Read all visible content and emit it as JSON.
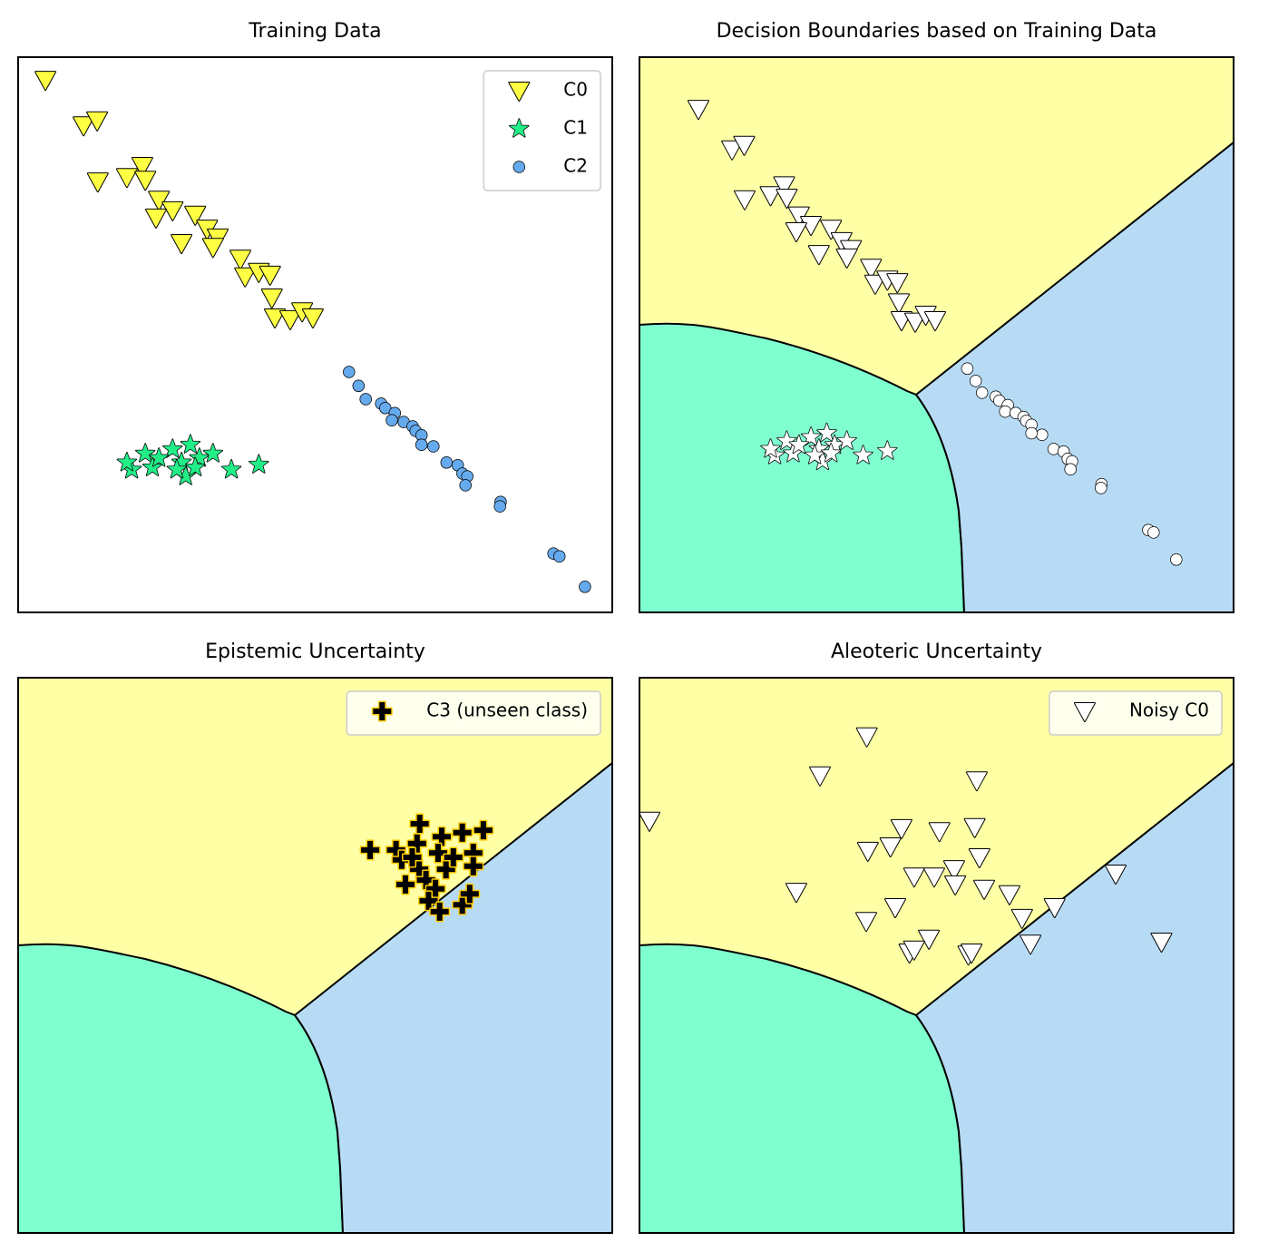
{
  "chart_data": [
    {
      "type": "scatter",
      "title": "Training Data",
      "xlim": [
        0,
        10
      ],
      "ylim": [
        0,
        10
      ],
      "legend": "upper right",
      "series": [
        {
          "name": "C0",
          "marker": "v",
          "color": "#ffff44",
          "edgecolor": "#000000",
          "x": [
            0.46,
            1.1,
            1.33,
            1.34,
            1.83,
            2.09,
            2.14,
            2.37,
            2.6,
            2.32,
            2.98,
            3.18,
            3.36,
            3.28,
            2.75,
            3.74,
            3.82,
            4.05,
            4.24,
            4.27,
            4.32,
            4.58,
            4.78,
            4.96
          ],
          "y": [
            9.59,
            8.77,
            8.86,
            7.76,
            7.84,
            8.04,
            7.79,
            7.43,
            7.24,
            7.11,
            7.16,
            6.91,
            6.75,
            6.58,
            6.65,
            6.37,
            6.05,
            6.13,
            6.08,
            5.67,
            5.31,
            5.28,
            5.42,
            5.31
          ]
        },
        {
          "name": "C1",
          "marker": "*",
          "color": "#22ee88",
          "edgecolor": "#000000",
          "x": [
            1.91,
            2.14,
            2.26,
            2.6,
            2.75,
            2.9,
            2.82,
            3.05,
            3.28,
            3.59,
            4.05,
            1.83,
            2.37,
            2.67,
            2.98
          ],
          "y": [
            2.57,
            2.86,
            2.61,
            2.94,
            2.7,
            3.02,
            2.45,
            2.78,
            2.86,
            2.57,
            2.66,
            2.7,
            2.78,
            2.57,
            2.61
          ]
        },
        {
          "name": "C2",
          "marker": "o",
          "color": "#66aaee",
          "edgecolor": "#000000",
          "x": [
            5.57,
            5.73,
            5.85,
            6.11,
            6.18,
            6.34,
            6.29,
            6.49,
            6.64,
            6.69,
            6.79,
            6.99,
            6.79,
            7.21,
            7.4,
            7.48,
            7.56,
            7.53,
            8.12,
            8.11,
            9.01,
            9.11,
            9.54
          ],
          "y": [
            4.33,
            4.08,
            3.84,
            3.76,
            3.68,
            3.59,
            3.46,
            3.43,
            3.35,
            3.27,
            3.19,
            2.99,
            3.02,
            2.7,
            2.65,
            2.5,
            2.45,
            2.29,
            1.99,
            1.91,
            1.06,
            1.01,
            0.46
          ]
        }
      ]
    },
    {
      "type": "scatter",
      "title": "Decision Boundaries based on Training Data",
      "xlim": [
        -0.66,
        10.63
      ],
      "ylim": [
        -0.61,
        10.64
      ],
      "series": [
        {
          "marker": "v",
          "color": "#ffffff",
          "edgecolor": "#000000",
          "x": [
            0.46,
            1.1,
            1.33,
            1.34,
            1.83,
            2.09,
            2.14,
            2.37,
            2.6,
            2.32,
            2.98,
            3.18,
            3.36,
            3.28,
            2.75,
            3.74,
            3.82,
            4.05,
            4.24,
            4.27,
            4.32,
            4.58,
            4.78,
            4.96
          ],
          "y": [
            9.59,
            8.77,
            8.86,
            7.76,
            7.84,
            8.04,
            7.79,
            7.43,
            7.24,
            7.11,
            7.16,
            6.91,
            6.75,
            6.58,
            6.65,
            6.37,
            6.05,
            6.13,
            6.08,
            5.67,
            5.31,
            5.28,
            5.42,
            5.31
          ]
        },
        {
          "marker": "*",
          "color": "#ffffff",
          "edgecolor": "#000000",
          "x": [
            1.91,
            2.14,
            2.26,
            2.6,
            2.75,
            2.9,
            2.82,
            3.05,
            3.28,
            3.59,
            4.05,
            1.83,
            2.37,
            2.67,
            2.98
          ],
          "y": [
            2.57,
            2.86,
            2.61,
            2.94,
            2.7,
            3.02,
            2.45,
            2.78,
            2.86,
            2.57,
            2.66,
            2.7,
            2.78,
            2.57,
            2.61
          ]
        },
        {
          "marker": "o",
          "color": "#ffffff",
          "edgecolor": "#000000",
          "x": [
            5.57,
            5.73,
            5.85,
            6.11,
            6.18,
            6.34,
            6.29,
            6.49,
            6.64,
            6.69,
            6.79,
            6.99,
            6.79,
            7.21,
            7.4,
            7.48,
            7.56,
            7.53,
            8.12,
            8.11,
            9.01,
            9.11,
            9.54
          ],
          "y": [
            4.33,
            4.08,
            3.84,
            3.76,
            3.68,
            3.59,
            3.46,
            3.43,
            3.35,
            3.27,
            3.19,
            2.99,
            3.02,
            2.7,
            2.65,
            2.5,
            2.45,
            2.29,
            1.99,
            1.91,
            1.06,
            1.01,
            0.46
          ]
        }
      ]
    },
    {
      "type": "scatter",
      "title": "Epistemic Uncertainty",
      "xlim": [
        -0.66,
        10.63
      ],
      "ylim": [
        -0.61,
        10.64
      ],
      "legend": "upper right",
      "series": [
        {
          "name": "C3 (unseen class)",
          "marker": "P",
          "color": "#000000",
          "edgecolor": "#ffcc00",
          "x": [
            6.03,
            6.52,
            6.97,
            7.39,
            7.78,
            8.18,
            6.92,
            6.63,
            6.96,
            7.32,
            7.47,
            7.99,
            7.99,
            6.7,
            7.09,
            7.27,
            7.14,
            7.35,
            7.78,
            7.92,
            7.61,
            6.83
          ],
          "y": [
            7.15,
            7.15,
            7.68,
            7.42,
            7.5,
            7.55,
            7.28,
            6.95,
            6.76,
            7.09,
            6.76,
            7.09,
            6.82,
            6.45,
            6.54,
            6.36,
            6.12,
            5.9,
            6.04,
            6.26,
            7.0,
            7.0
          ]
        }
      ]
    },
    {
      "type": "scatter",
      "title": "Aleoteric Uncertainty",
      "xlim": [
        -0.66,
        10.63
      ],
      "ylim": [
        -0.61,
        10.64
      ],
      "legend": "upper right",
      "series": [
        {
          "name": "Noisy C0",
          "marker": "v",
          "color": "#ffffff",
          "edgecolor": "#000000",
          "x": [
            -0.47,
            2.77,
            3.66,
            5.75,
            4.32,
            5.04,
            5.71,
            3.68,
            4.11,
            5.8,
            4.56,
            4.94,
            5.32,
            5.34,
            5.89,
            2.32,
            4.2,
            6.37,
            6.61,
            7.23,
            8.39,
            3.65,
            4.84,
            4.47,
            4.56,
            5.59,
            5.65,
            6.77,
            9.26
          ],
          "y": [
            7.74,
            8.66,
            9.45,
            8.56,
            7.59,
            7.53,
            7.61,
            7.13,
            7.22,
            7.0,
            6.61,
            6.61,
            6.76,
            6.45,
            6.36,
            6.3,
            5.99,
            6.25,
            5.77,
            5.99,
            6.67,
            5.71,
            5.35,
            5.07,
            5.13,
            5.03,
            5.07,
            5.25,
            5.29
          ]
        }
      ]
    }
  ]
}
